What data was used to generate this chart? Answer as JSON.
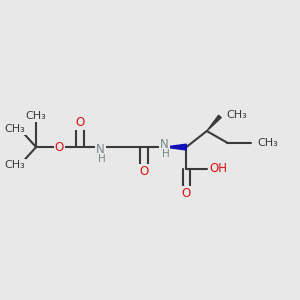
{
  "bg_color": "#e8e8e8",
  "bond_color": "#3a3a3a",
  "oxygen_color": "#dd1111",
  "nitrogen_color": "#1111bb",
  "hydrogen_color": "#778888",
  "bond_lw": 1.5,
  "font_size": 8.5,
  "xlim": [
    0.0,
    1.0
  ],
  "ylim": [
    0.3,
    0.75
  ]
}
